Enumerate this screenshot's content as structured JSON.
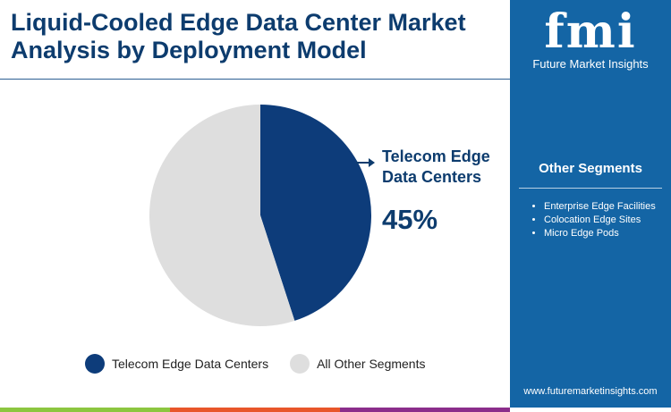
{
  "title": "Liquid-Cooled Edge Data Center Market Analysis by Deployment Model",
  "brand": {
    "logo": "fmi",
    "name": "Future Market Insights",
    "url": "www.futuremarketinsights.com"
  },
  "other_segments": {
    "title": "Other Segments",
    "items": [
      "Enterprise Edge Facilities",
      "Colocation Edge Sites",
      "Micro Edge Pods"
    ]
  },
  "chart_data": {
    "type": "pie",
    "title": "Liquid-Cooled Edge Data Center Market Analysis by Deployment Model",
    "categories": [
      "Telecom Edge Data Centers",
      "All Other Segments"
    ],
    "values": [
      45,
      55
    ],
    "colors": [
      "#0d3c7a",
      "#dedede"
    ],
    "annotation": {
      "label": "Telecom Edge Data Centers",
      "label_lines": [
        "Telecom Edge",
        "Data Centers"
      ],
      "value_text": "45%"
    },
    "legend": "bottom"
  },
  "bar_colors": [
    "#8cc63f",
    "#e8562a",
    "#8b2d8b"
  ]
}
